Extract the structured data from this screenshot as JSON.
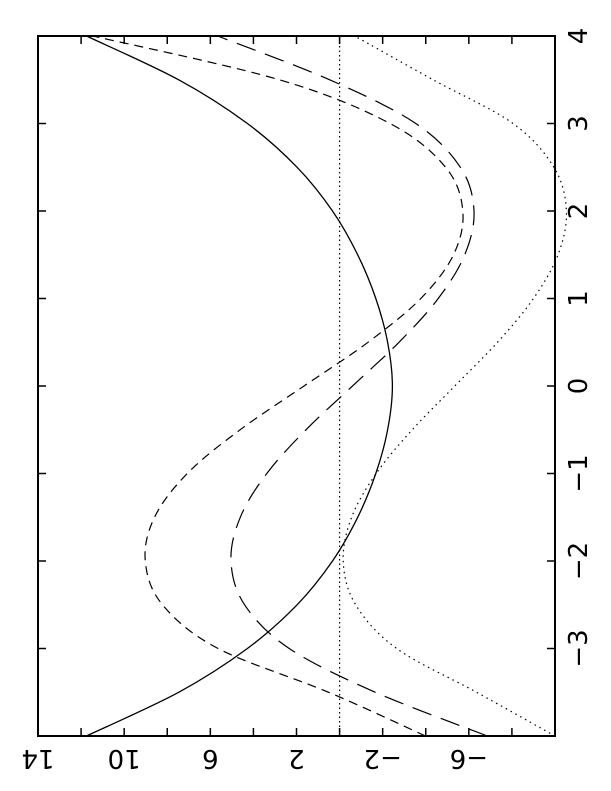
{
  "chart_data": {
    "type": "line",
    "title": "",
    "xlabel": "",
    "ylabel": "",
    "orientation": "rotated 90 degrees clockwise",
    "xlim": [
      -4,
      4
    ],
    "ylim": [
      -10,
      14
    ],
    "x_tick_labels": [
      "−3",
      "−2",
      "−1",
      "0",
      "1",
      "2",
      "3",
      "4"
    ],
    "y_tick_labels": [
      "−6",
      "−2",
      "2",
      "6",
      "10",
      "14"
    ],
    "legend": "none",
    "grid": false,
    "series": [
      {
        "style": "solid",
        "x": [
          -4,
          -3.5,
          -3,
          -2.5,
          -2,
          -1.5,
          -1,
          -0.5,
          0,
          0.5,
          1,
          1.5,
          2,
          2.5,
          3,
          3.5,
          4
        ],
        "y": [
          11.75,
          7.47,
          4.28,
          1.97,
          0.33,
          -0.84,
          -1.68,
          -2.23,
          -2.45,
          -2.23,
          -1.68,
          -0.84,
          0.33,
          1.97,
          4.28,
          7.47,
          11.75
        ]
      },
      {
        "style": "short-dash",
        "x": [
          -4,
          -3.5,
          -3,
          -2.5,
          -2,
          -1.5,
          -1,
          -0.5,
          0,
          0.5,
          1,
          1.5,
          2,
          2.5,
          3,
          3.5,
          4
        ],
        "y": [
          -3.99,
          0.51,
          5.64,
          8.22,
          9.02,
          8.59,
          7.07,
          4.62,
          1.65,
          -1.32,
          -3.77,
          -5.29,
          -5.72,
          -4.92,
          -2.34,
          2.79,
          11.45
        ]
      },
      {
        "style": "long-dash",
        "x": [
          -4,
          -3.5,
          -3,
          -2.5,
          -2,
          -1.5,
          -1,
          -0.5,
          0,
          0.5,
          1,
          1.5,
          2,
          2.5,
          3,
          3.5,
          4
        ],
        "y": [
          -6.86,
          -1.66,
          2.34,
          4.41,
          5.04,
          4.61,
          3.38,
          1.56,
          -0.6,
          -2.76,
          -4.58,
          -5.81,
          -6.24,
          -5.61,
          -3.54,
          0.46,
          5.66
        ]
      },
      {
        "style": "dotted",
        "x": [
          -4,
          -3.5,
          -3,
          -2.5,
          -2,
          -1.5,
          -1,
          -0.5,
          0,
          0.5,
          1,
          1.5,
          2,
          2.5,
          3,
          3.5,
          4
        ],
        "y": [
          -10.0,
          -6.36,
          -2.65,
          -0.75,
          -0.17,
          -0.56,
          -1.7,
          -3.37,
          -5.35,
          -7.33,
          -9.0,
          -10.14,
          -10.53,
          -9.95,
          -8.05,
          -4.34,
          -0.7
        ]
      },
      {
        "style": "dotted-horizontal",
        "x": [
          -4,
          4
        ],
        "y": [
          0,
          0
        ]
      }
    ]
  }
}
